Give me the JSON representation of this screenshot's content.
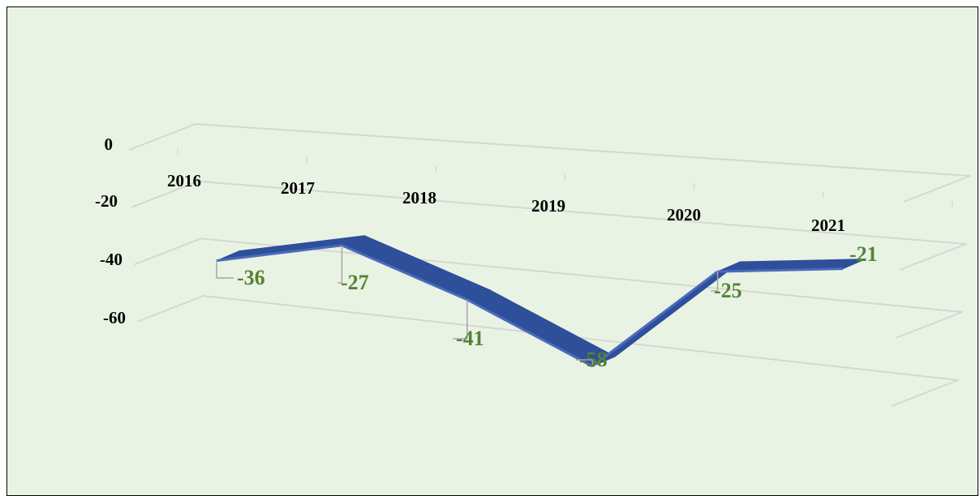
{
  "chart_data": {
    "type": "line",
    "categories": [
      "2016",
      "2017",
      "2018",
      "2019",
      "2020",
      "2021"
    ],
    "series": [
      {
        "values": [
          -36,
          -27,
          -41,
          -58,
          -25,
          -21
        ]
      }
    ],
    "data_labels": [
      "-36",
      "-27",
      "-41",
      "-58",
      "-25",
      "-21"
    ],
    "y_ticks": [
      "0",
      "-20",
      "-40",
      "-60"
    ],
    "ylim": [
      -60,
      0
    ],
    "title": "",
    "xlabel": "",
    "ylabel": "",
    "grid": true,
    "legend": "none",
    "style": "3d-line",
    "colors": {
      "background": "#e9f3e3",
      "ribbon_top": "#4a6bbd",
      "ribbon_side": "#2e4f9a",
      "data_label": "#548235",
      "gridline": "#d6d6d6"
    }
  }
}
